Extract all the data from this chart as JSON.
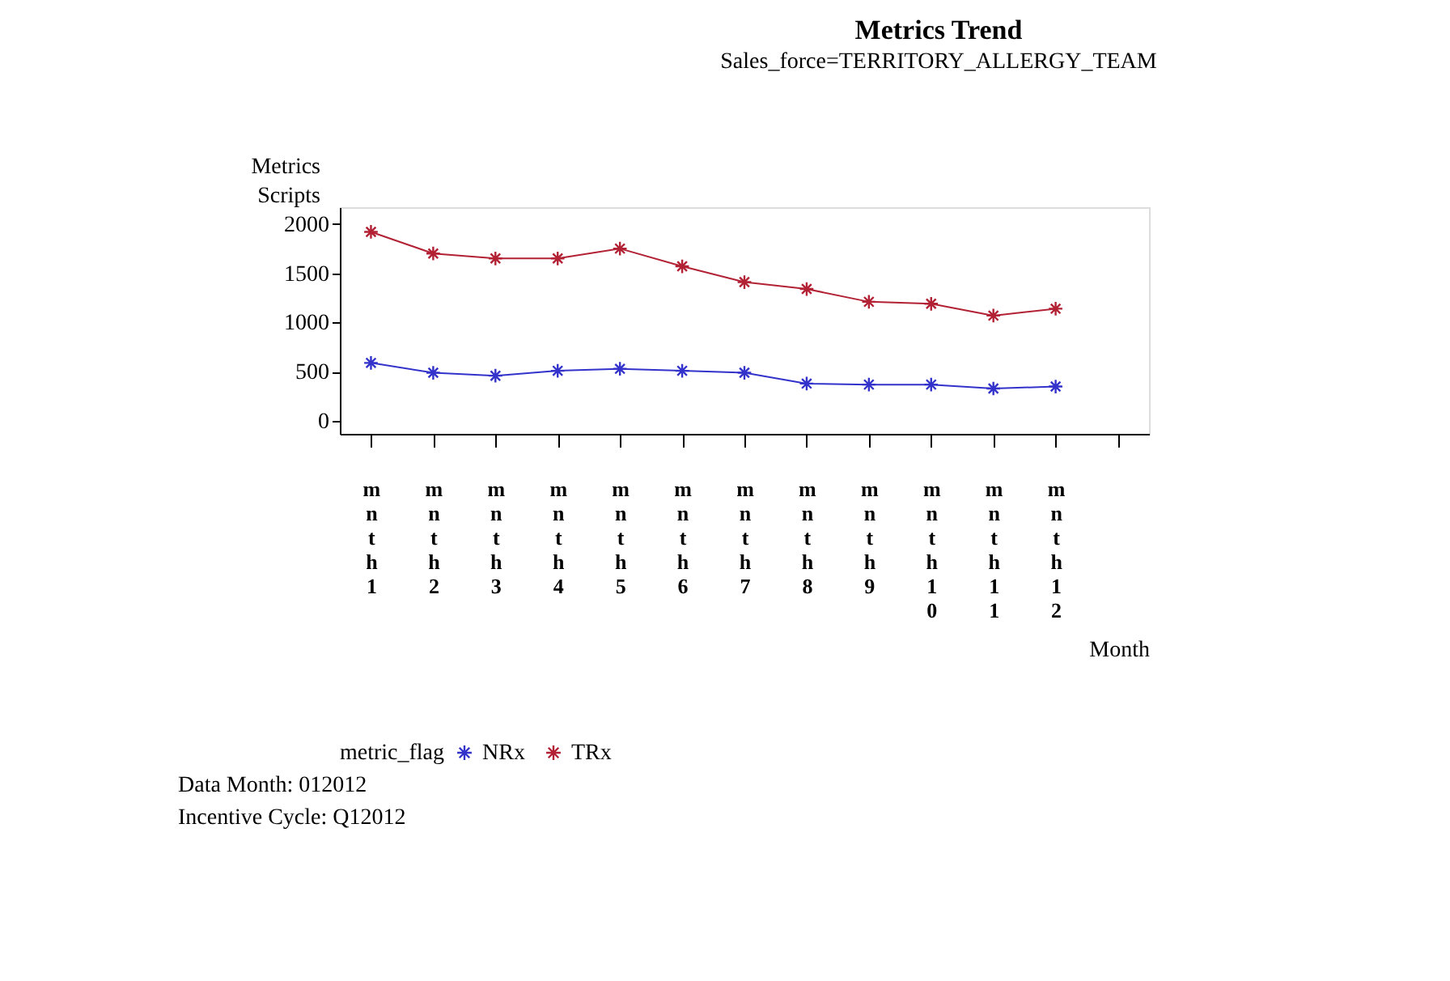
{
  "chart_data": {
    "type": "line",
    "title": "Metrics Trend",
    "subtitle": "Sales_force=TERRITORY_ALLERGY_TEAM",
    "xlabel": "Month",
    "ylabel": "Metrics Scripts",
    "legend_title": "metric_flag",
    "categories": [
      "mnth1",
      "mnth2",
      "mnth3",
      "mnth4",
      "mnth5",
      "mnth6",
      "mnth7",
      "mnth8",
      "mnth9",
      "mnth10",
      "mnth11",
      "mnth12",
      null
    ],
    "series": [
      {
        "name": "NRx",
        "color": "#3333cc",
        "values": [
          590,
          490,
          460,
          510,
          530,
          510,
          490,
          380,
          370,
          370,
          330,
          350,
          null
        ]
      },
      {
        "name": "TRx",
        "color": "#b22234",
        "values": [
          1920,
          1700,
          1650,
          1650,
          1750,
          1570,
          1410,
          1340,
          1210,
          1190,
          1070,
          1140,
          null
        ]
      }
    ],
    "ylim": [
      -130,
      2170
    ],
    "yticks": [
      0,
      500,
      1000,
      1500,
      2000
    ],
    "marker": "cross",
    "line_style": "solid",
    "grid": false,
    "legend": "bottom",
    "annotations": [
      "Data Month: 012012",
      "Incentive Cycle: Q12012"
    ]
  }
}
